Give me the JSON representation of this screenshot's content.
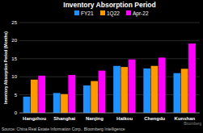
{
  "chart_data": {
    "type": "bar",
    "title": "Inventory Absorption Period",
    "y_label": "Inventory Absorption Period (Months)",
    "categories": [
      "Hangzhou",
      "Shanghai",
      "Nanjing",
      "Haikou",
      "Chengdu",
      "Kunshan"
    ],
    "series": [
      {
        "name": "FY21",
        "color": "#1e90ff",
        "values": [
          4.5,
          5.5,
          7.6,
          13.0,
          12.3,
          11.0
        ]
      },
      {
        "name": "1Q22",
        "color": "#ff9900",
        "values": [
          9.2,
          5.2,
          8.8,
          12.7,
          13.0,
          12.2
        ]
      },
      {
        "name": "Apr-22",
        "color": "#ff00ff",
        "values": [
          10.3,
          10.5,
          11.7,
          14.8,
          15.3,
          19.2
        ]
      }
    ],
    "ylim": [
      0,
      25
    ],
    "yticks": [
      0,
      5,
      10,
      15,
      20,
      25
    ],
    "grid": true,
    "legend": "top",
    "source": "Source: China Real Estate Information Corp., Bloomberg Intelligence",
    "annotations": [
      "Bloomberg"
    ]
  }
}
